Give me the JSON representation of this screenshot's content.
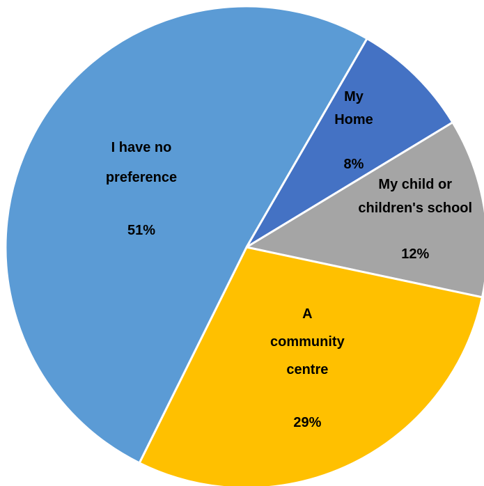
{
  "chart_data": {
    "type": "pie",
    "title": "",
    "categories": [
      "My Home",
      "My child or children's school",
      "A community centre",
      "I have no preference"
    ],
    "values": [
      8,
      12,
      29,
      51
    ],
    "value_labels": [
      "8%",
      "12%",
      "29%",
      "51%"
    ],
    "colors": [
      "#4472C4",
      "#A5A5A5",
      "#FFC000",
      "#5B9BD5"
    ],
    "label_lines": [
      [
        "My",
        "Home"
      ],
      [
        "My child or",
        "children's school"
      ],
      [
        "A",
        "community",
        "centre"
      ],
      [
        "I have no",
        "preference"
      ]
    ],
    "start_angle_deg": 30,
    "direction": "clockwise",
    "legend": "none"
  }
}
